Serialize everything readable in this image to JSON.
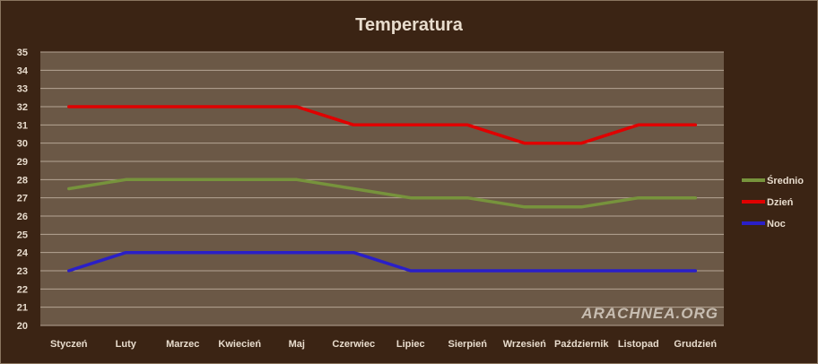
{
  "chart_data": {
    "type": "line",
    "title": "Temperatura",
    "categories": [
      "Styczeń",
      "Luty",
      "Marzec",
      "Kwiecień",
      "Maj",
      "Czerwiec",
      "Lipiec",
      "Sierpień",
      "Wrzesień",
      "Październik",
      "Listopad",
      "Grudzień"
    ],
    "series": [
      {
        "name": "Średnio",
        "color": "#77933c",
        "values": [
          27.5,
          28,
          28,
          28,
          28,
          27.5,
          27,
          27,
          26.5,
          26.5,
          27,
          27
        ]
      },
      {
        "name": "Dzień",
        "color": "#e00000",
        "values": [
          32,
          32,
          32,
          32,
          32,
          31,
          31,
          31,
          30,
          30,
          31,
          31
        ]
      },
      {
        "name": "Noc",
        "color": "#2a1fc8",
        "values": [
          23,
          24,
          24,
          24,
          24,
          24,
          23,
          23,
          23,
          23,
          23,
          23
        ]
      }
    ],
    "ylim": [
      20,
      35
    ],
    "ytick_step": 1,
    "grid": true,
    "legend": "right",
    "plot_background": "#6b5846",
    "watermark": "ARACHNEA.ORG"
  }
}
